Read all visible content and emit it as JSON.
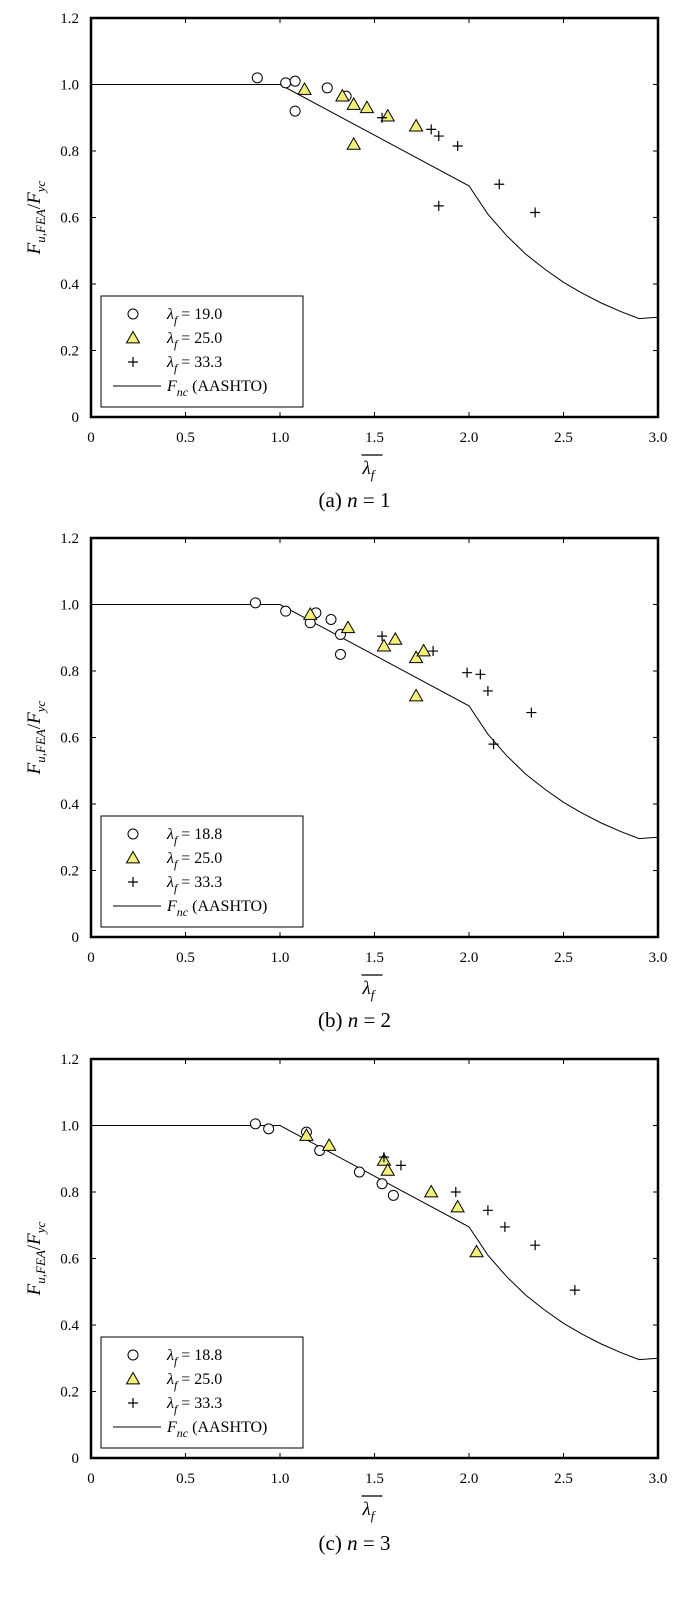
{
  "chart_data": [
    {
      "type": "scatter",
      "caption": {
        "prefix": "(a) ",
        "var": "n",
        "suffix": " = 1"
      },
      "ylabel": {
        "base": "F",
        "sub": "u,FEA",
        "sep": "/",
        "base2": "F",
        "sub2": "yc"
      },
      "xlabel": {
        "main": "λ",
        "sub": "f",
        "overbar": true
      },
      "xlim": [
        0,
        3.0
      ],
      "ylim": [
        0,
        1.2
      ],
      "x_ticks": [
        "0",
        "0.5",
        "1.0",
        "1.5",
        "2.0",
        "2.5",
        "3.0"
      ],
      "y_ticks": [
        "0",
        "0.2",
        "0.4",
        "0.6",
        "0.8",
        "1.0",
        "1.2"
      ],
      "legend_position": "bottom-left",
      "series": [
        {
          "name": {
            "sym": "λ",
            "sub": "f",
            "rest": " = 19.0"
          },
          "marker": "circle",
          "points": [
            [
              0.88,
              1.02
            ],
            [
              1.03,
              1.005
            ],
            [
              1.08,
              1.01
            ],
            [
              1.08,
              0.92
            ],
            [
              1.25,
              0.99
            ],
            [
              1.35,
              0.965
            ]
          ]
        },
        {
          "name": {
            "sym": "λ",
            "sub": "f",
            "rest": " = 25.0"
          },
          "marker": "triangle",
          "color": "#f3f07a",
          "points": [
            [
              1.13,
              0.985
            ],
            [
              1.33,
              0.965
            ],
            [
              1.39,
              0.94
            ],
            [
              1.46,
              0.93
            ],
            [
              1.57,
              0.905
            ],
            [
              1.72,
              0.875
            ],
            [
              1.39,
              0.82
            ]
          ]
        },
        {
          "name": {
            "sym": "λ",
            "sub": "f",
            "rest": " = 33.3"
          },
          "marker": "plus",
          "points": [
            [
              1.54,
              0.9
            ],
            [
              1.8,
              0.865
            ],
            [
              1.84,
              0.845
            ],
            [
              1.94,
              0.815
            ],
            [
              2.16,
              0.7
            ],
            [
              2.35,
              0.615
            ],
            [
              1.84,
              0.635
            ]
          ]
        }
      ],
      "line": {
        "name": {
          "sym": "F",
          "sub": "nc",
          "rest": " (AASHTO)"
        },
        "points": [
          [
            0,
            1.0
          ],
          [
            1.0,
            1.0
          ],
          [
            2.0,
            0.695
          ],
          [
            2.1,
            0.61
          ],
          [
            2.2,
            0.545
          ],
          [
            2.3,
            0.49
          ],
          [
            2.4,
            0.445
          ],
          [
            2.5,
            0.405
          ],
          [
            2.6,
            0.372
          ],
          [
            2.7,
            0.343
          ],
          [
            2.8,
            0.318
          ],
          [
            2.9,
            0.296
          ],
          [
            3.0,
            0.3
          ]
        ]
      }
    },
    {
      "type": "scatter",
      "caption": {
        "prefix": "(b) ",
        "var": "n",
        "suffix": " = 2"
      },
      "ylabel": {
        "base": "F",
        "sub": "u,FEA",
        "sep": "/",
        "base2": "F",
        "sub2": "yc"
      },
      "xlabel": {
        "main": "λ",
        "sub": "f",
        "overbar": true
      },
      "xlim": [
        0,
        3.0
      ],
      "ylim": [
        0,
        1.2
      ],
      "x_ticks": [
        "0",
        "0.5",
        "1.0",
        "1.5",
        "2.0",
        "2.5",
        "3.0"
      ],
      "y_ticks": [
        "0",
        "0.2",
        "0.4",
        "0.6",
        "0.8",
        "1.0",
        "1.2"
      ],
      "legend_position": "bottom-left",
      "series": [
        {
          "name": {
            "sym": "λ",
            "sub": "f",
            "rest": " = 18.8"
          },
          "marker": "circle",
          "points": [
            [
              0.87,
              1.005
            ],
            [
              1.03,
              0.98
            ],
            [
              1.19,
              0.975
            ],
            [
              1.16,
              0.945
            ],
            [
              1.27,
              0.955
            ],
            [
              1.32,
              0.91
            ],
            [
              1.32,
              0.85
            ]
          ]
        },
        {
          "name": {
            "sym": "λ",
            "sub": "f",
            "rest": " = 25.0"
          },
          "marker": "triangle",
          "color": "#f3f07a",
          "points": [
            [
              1.16,
              0.97
            ],
            [
              1.36,
              0.93
            ],
            [
              1.55,
              0.875
            ],
            [
              1.61,
              0.895
            ],
            [
              1.72,
              0.84
            ],
            [
              1.76,
              0.86
            ],
            [
              1.72,
              0.725
            ]
          ]
        },
        {
          "name": {
            "sym": "λ",
            "sub": "f",
            "rest": " = 33.3"
          },
          "marker": "plus",
          "points": [
            [
              1.54,
              0.905
            ],
            [
              1.81,
              0.86
            ],
            [
              1.99,
              0.795
            ],
            [
              2.06,
              0.79
            ],
            [
              2.1,
              0.74
            ],
            [
              2.13,
              0.58
            ],
            [
              2.33,
              0.675
            ]
          ]
        }
      ],
      "line": {
        "name": {
          "sym": "F",
          "sub": "nc",
          "rest": " (AASHTO)"
        },
        "points": [
          [
            0,
            1.0
          ],
          [
            1.0,
            1.0
          ],
          [
            2.0,
            0.695
          ],
          [
            2.1,
            0.61
          ],
          [
            2.2,
            0.545
          ],
          [
            2.3,
            0.49
          ],
          [
            2.4,
            0.445
          ],
          [
            2.5,
            0.405
          ],
          [
            2.6,
            0.372
          ],
          [
            2.7,
            0.343
          ],
          [
            2.8,
            0.318
          ],
          [
            2.9,
            0.296
          ],
          [
            3.0,
            0.3
          ]
        ]
      }
    },
    {
      "type": "scatter",
      "caption": {
        "prefix": "(c) ",
        "var": "n",
        "suffix": " = 3"
      },
      "ylabel": {
        "base": "F",
        "sub": "u,FEA",
        "sep": "/",
        "base2": "F",
        "sub2": "yc"
      },
      "xlabel": {
        "main": "λ",
        "sub": "f",
        "overbar": true
      },
      "xlim": [
        0,
        3.0
      ],
      "ylim": [
        0,
        1.2
      ],
      "x_ticks": [
        "0",
        "0.5",
        "1.0",
        "1.5",
        "2.0",
        "2.5",
        "3.0"
      ],
      "y_ticks": [
        "0",
        "0.2",
        "0.4",
        "0.6",
        "0.8",
        "1.0",
        "1.2"
      ],
      "legend_position": "bottom-left",
      "series": [
        {
          "name": {
            "sym": "λ",
            "sub": "f",
            "rest": " = 18.8"
          },
          "marker": "circle",
          "points": [
            [
              0.87,
              1.005
            ],
            [
              0.94,
              0.99
            ],
            [
              1.14,
              0.98
            ],
            [
              1.21,
              0.925
            ],
            [
              1.42,
              0.86
            ],
            [
              1.54,
              0.825
            ],
            [
              1.6,
              0.79
            ]
          ]
        },
        {
          "name": {
            "sym": "λ",
            "sub": "f",
            "rest": " = 25.0"
          },
          "marker": "triangle",
          "color": "#f3f07a",
          "points": [
            [
              1.14,
              0.97
            ],
            [
              1.26,
              0.94
            ],
            [
              1.55,
              0.895
            ],
            [
              1.57,
              0.865
            ],
            [
              1.8,
              0.8
            ],
            [
              1.94,
              0.755
            ],
            [
              2.04,
              0.62
            ]
          ]
        },
        {
          "name": {
            "sym": "λ",
            "sub": "f",
            "rest": " = 33.3"
          },
          "marker": "plus",
          "points": [
            [
              1.55,
              0.905
            ],
            [
              1.64,
              0.88
            ],
            [
              1.93,
              0.8
            ],
            [
              2.1,
              0.745
            ],
            [
              2.19,
              0.695
            ],
            [
              2.35,
              0.64
            ],
            [
              2.56,
              0.505
            ]
          ]
        }
      ],
      "line": {
        "name": {
          "sym": "F",
          "sub": "nc",
          "rest": " (AASHTO)"
        },
        "points": [
          [
            0,
            1.0
          ],
          [
            1.0,
            1.0
          ],
          [
            2.0,
            0.695
          ],
          [
            2.1,
            0.61
          ],
          [
            2.2,
            0.545
          ],
          [
            2.3,
            0.49
          ],
          [
            2.4,
            0.445
          ],
          [
            2.5,
            0.405
          ],
          [
            2.6,
            0.372
          ],
          [
            2.7,
            0.343
          ],
          [
            2.8,
            0.318
          ],
          [
            2.9,
            0.296
          ],
          [
            3.0,
            0.3
          ]
        ]
      }
    }
  ]
}
